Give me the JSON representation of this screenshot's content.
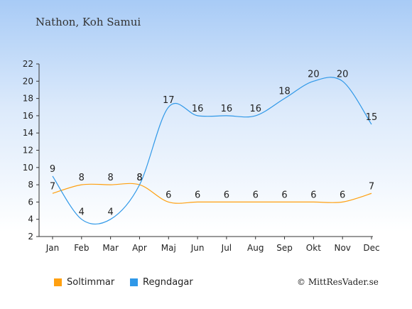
{
  "title": "Nathon, Koh Samui",
  "copyright": "© MittResVader.se",
  "chart_data": {
    "type": "line",
    "categories": [
      "Jan",
      "Feb",
      "Mar",
      "Apr",
      "Maj",
      "Jun",
      "Jul",
      "Aug",
      "Sep",
      "Okt",
      "Nov",
      "Dec"
    ],
    "ylim": [
      2,
      22
    ],
    "yticks": [
      2,
      4,
      6,
      8,
      10,
      12,
      14,
      16,
      18,
      20,
      22
    ],
    "grid": false,
    "legend_position": "bottom",
    "series": [
      {
        "name": "Soltimmar",
        "color": "#ffa010",
        "values": [
          7,
          8,
          8,
          8,
          6,
          6,
          6,
          6,
          6,
          6,
          6,
          7
        ]
      },
      {
        "name": "Regndagar",
        "color": "#2f98e8",
        "values": [
          9,
          4,
          4,
          8,
          17,
          16,
          16,
          16,
          18,
          20,
          20,
          15
        ]
      }
    ]
  }
}
